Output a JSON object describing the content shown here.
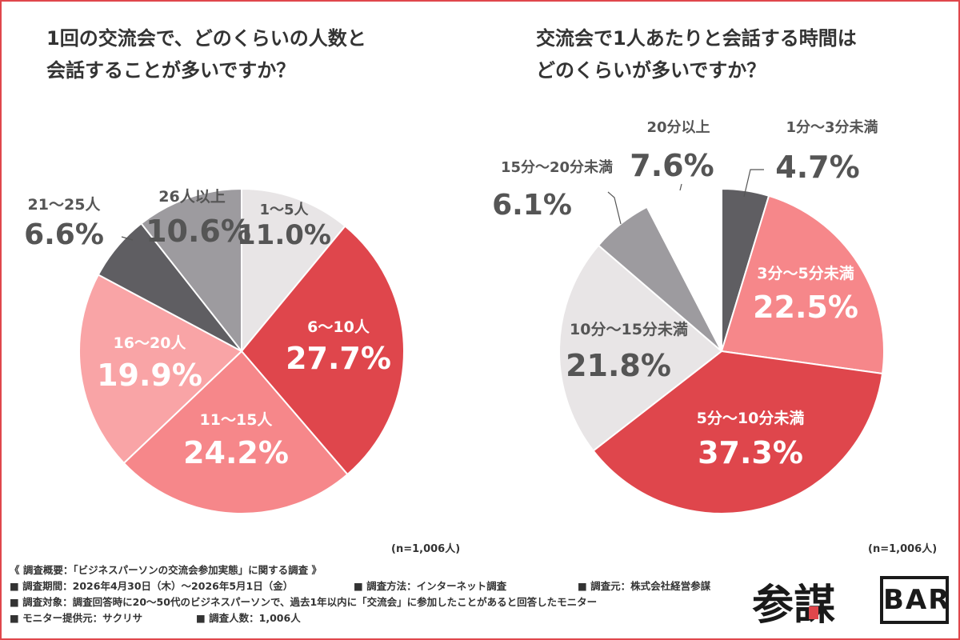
{
  "chart_data": [
    {
      "type": "pie",
      "title": "1回の交流会で、どのくらいの人数と会話することが多いですか？",
      "title_lines": [
        "1回の交流会で、どのくらいの人数と",
        "会話することが多いですか？"
      ],
      "labels": [
        "1～5人",
        "6～10人",
        "11～15人",
        "16～20人",
        "21～25人",
        "26人以上"
      ],
      "values": [
        11.0,
        27.7,
        24.2,
        19.9,
        6.6,
        10.6
      ],
      "value_labels": [
        "11.0%",
        "27.7%",
        "24.2%",
        "19.9%",
        "6.6%",
        "10.6%"
      ],
      "colors": [
        "#e8e5e6",
        "#df464c",
        "#f6878a",
        "#f9a4a6",
        "#5f5e62",
        "#9d9b9f"
      ],
      "note": "(n=1,006人)"
    },
    {
      "type": "pie",
      "title": "交流会で1人あたりと会話する時間はどのくらいが多いですか？",
      "title_lines": [
        "交流会で1人あたりと会話する時間は",
        "どのくらいが多いですか？"
      ],
      "labels": [
        "1分～3分未満",
        "3分～5分未満",
        "5分～10分未満",
        "10分～15分未満",
        "15分～20分未満",
        "20分以上"
      ],
      "values": [
        4.7,
        22.5,
        37.3,
        21.8,
        6.1,
        7.6
      ],
      "value_labels": [
        "4.7%",
        "22.5%",
        "37.3%",
        "21.8%",
        "6.1%",
        "7.6%"
      ],
      "colors": [
        "#5f5e62",
        "#f6878a",
        "#df464c",
        "#e8e5e6",
        "#9d9b9f",
        "#ffffff"
      ],
      "note": "(n=1,006人)"
    }
  ],
  "survey": {
    "overview": "《 調査概要：「ビジネスパーソンの交流会参加実態」に関する調査 》",
    "period": "■ 調査期間：2026年4月30日（木）～2026年5月1日（金）",
    "method": "■ 調査方法：インターネット調査",
    "source": "■ 調査元：株式会社経営参謀",
    "target": "■ 調査対象：調査回答時に20～50代のビジネスパーソンで、過去1年以内に「交流会」に参加したことがあると回答したモニター",
    "monitor": "■ モニター提供元：サクリサ",
    "count": "■ 調査人数：1,006人"
  },
  "logo": {
    "text": "参謀",
    "bar": "BAR",
    "accent": "#e0474c"
  }
}
